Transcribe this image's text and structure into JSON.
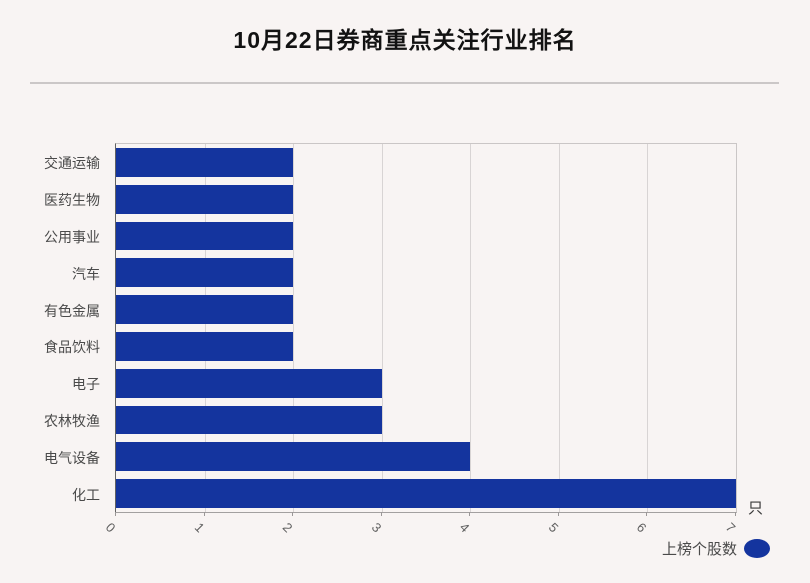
{
  "title": "10月22日券商重点关注行业排名",
  "chart_data": {
    "type": "bar",
    "orientation": "horizontal",
    "title": "10月22日券商重点关注行业排名",
    "categories": [
      "交通运输",
      "医药生物",
      "公用事业",
      "汽车",
      "有色金属",
      "食品饮料",
      "电子",
      "农林牧渔",
      "电气设备",
      "化工"
    ],
    "series": [
      {
        "name": "上榜个股数",
        "values": [
          2,
          2,
          2,
          2,
          2,
          2,
          3,
          3,
          4,
          7
        ]
      }
    ],
    "xlim": [
      0,
      7
    ],
    "xticks": [
      "0",
      "1",
      "2",
      "3",
      "4",
      "5",
      "6",
      "7"
    ],
    "x_unit": "只",
    "grid": true,
    "legend_position": "bottom-right",
    "bar_color": "#14349e"
  },
  "axis": {
    "unit_label": "只"
  },
  "legend": {
    "label": "上榜个股数"
  },
  "colors": {
    "bar": "#14349e",
    "background": "#f8f4f3"
  }
}
